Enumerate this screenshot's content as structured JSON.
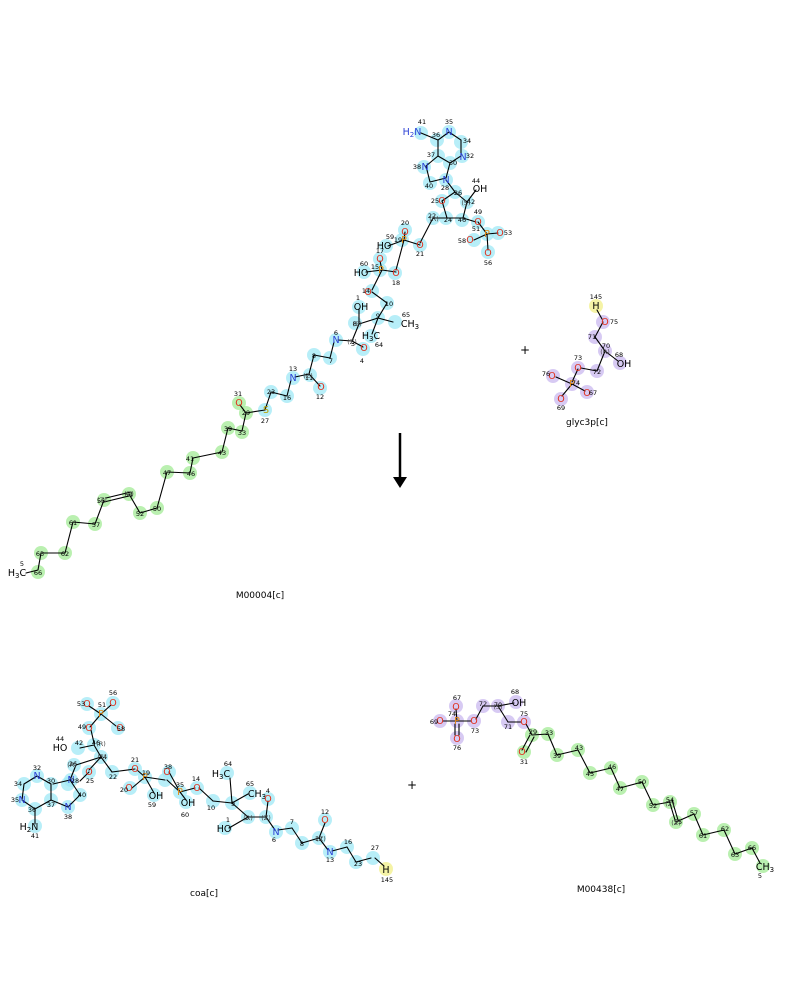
{
  "reaction": {
    "reactants": [
      {
        "id": "m00004",
        "label": "M00004[c]"
      },
      {
        "id": "glyc3p",
        "label": "glyc3p[c]"
      }
    ],
    "products": [
      {
        "id": "coa",
        "label": "coa[c]"
      },
      {
        "id": "m00438",
        "label": "M00438[c]"
      }
    ],
    "plus_sign": "+",
    "arrow": "reaction-arrow-down"
  },
  "highlight_colors": {
    "coa_fragment": "#9fe8f6",
    "acyl_chain": "#a9ec9c",
    "glycerol_phosphate": "#cdbdf0",
    "thiol_hydrogen": "#f4f29c"
  }
}
